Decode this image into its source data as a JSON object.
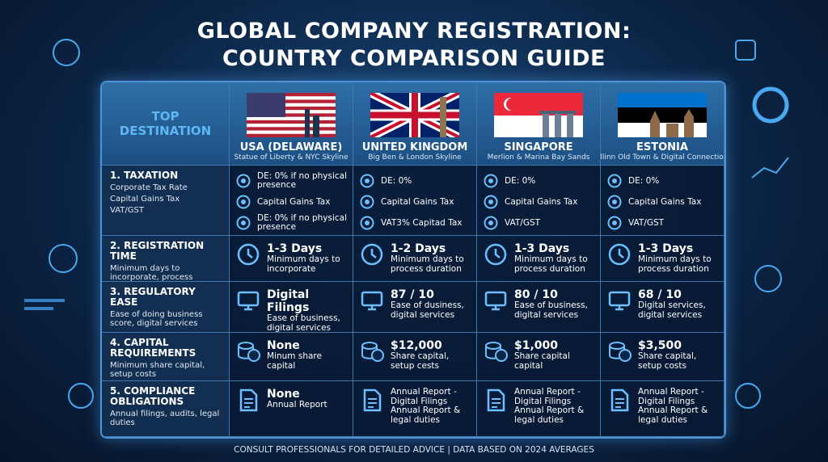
{
  "title_lines": [
    "GLOBAL COMPANY REGISTRATION:",
    "COUNTRY COMPARISON GUIDE"
  ],
  "corner": "TOP DESTINATION",
  "countries": [
    {
      "name": "USA (DELAWARE)",
      "caption": "Statue of Liberty & NYC Skyline"
    },
    {
      "name": "UNITED KINGDOM",
      "caption": "Big Ben & London Skyline"
    },
    {
      "name": "SINGAPORE",
      "caption": "Merlion & Marina Bay Sands"
    },
    {
      "name": "ESTONIA",
      "caption": "Tallinn Old Town & Digital Connections"
    }
  ],
  "rows": [
    {
      "label": "1. TAXATION",
      "items": [
        "Corporate Tax Rate",
        "Capital Gains Tax",
        "VAT/GST"
      ],
      "cells": [
        {
          "lines": [
            "DE: 0% if no physical presence",
            "Capital Gains Tax",
            "DE: 0% if no physical presence"
          ]
        },
        {
          "lines": [
            "DE: 0%",
            "Capital Gains Tax",
            "VAT3% Capitad Tax"
          ]
        },
        {
          "lines": [
            "DE: 0%",
            "Capital Gains Tax",
            "VAT/GST"
          ]
        },
        {
          "lines": [
            "DE: 0%",
            "Capital Gains Tax",
            "VAT/GST"
          ]
        }
      ]
    },
    {
      "label": "2. REGISTRATION TIME",
      "items": [
        "Minimum days to incorporate, process duration"
      ],
      "cells": [
        {
          "head": "1-3 Days",
          "body": "Minimum days to incorporate"
        },
        {
          "head": "1-2 Days",
          "body": "Minimum days to process duration"
        },
        {
          "head": "1-3 Days",
          "body": "Minimum days to process duration"
        },
        {
          "head": "1-3 Days",
          "body": "Minimum days to process duration"
        }
      ]
    },
    {
      "label": "3. REGULATORY EASE",
      "items": [
        "Ease of doing business score, digital services"
      ],
      "cells": [
        {
          "head": "Digital Filings",
          "body": "Ease of business, digital services"
        },
        {
          "head": "87 / 10",
          "body": "Ease of dusiness, digital services"
        },
        {
          "head": "80 / 10",
          "body": "Ease of business, digital services"
        },
        {
          "head": "68 / 10",
          "body": "Digital services, digital services"
        }
      ]
    },
    {
      "label": "4. CAPITAL REQUIREMENTS",
      "items": [
        "Minimum share capital, setup costs"
      ],
      "cells": [
        {
          "head": "None",
          "body": "Minum share capital"
        },
        {
          "head": "$12,000",
          "body": "Share capital, setup cests"
        },
        {
          "head": "$1,000",
          "body": "Share capital capital"
        },
        {
          "head": "$3,500",
          "body": "Share capital, setup costs"
        }
      ]
    },
    {
      "label": "5. COMPLIANCE OBLIGATIONS",
      "items": [
        "Annual filings, audits, legal duties"
      ],
      "cells": [
        {
          "head": "None",
          "body": "Annual Report"
        },
        {
          "body": "Annual Report - Digital Filings Annual Report & legal duties"
        },
        {
          "body": "Annual Report - Digital Filings Annual Report & legal duties"
        },
        {
          "body": "Annual Report - Digital Filings Annual Report & legal duties"
        }
      ]
    }
  ],
  "footer": "CONSULT PROFESSIONALS FOR DETAILED ADVICE | DATA BASED ON 2024 AVERAGES"
}
